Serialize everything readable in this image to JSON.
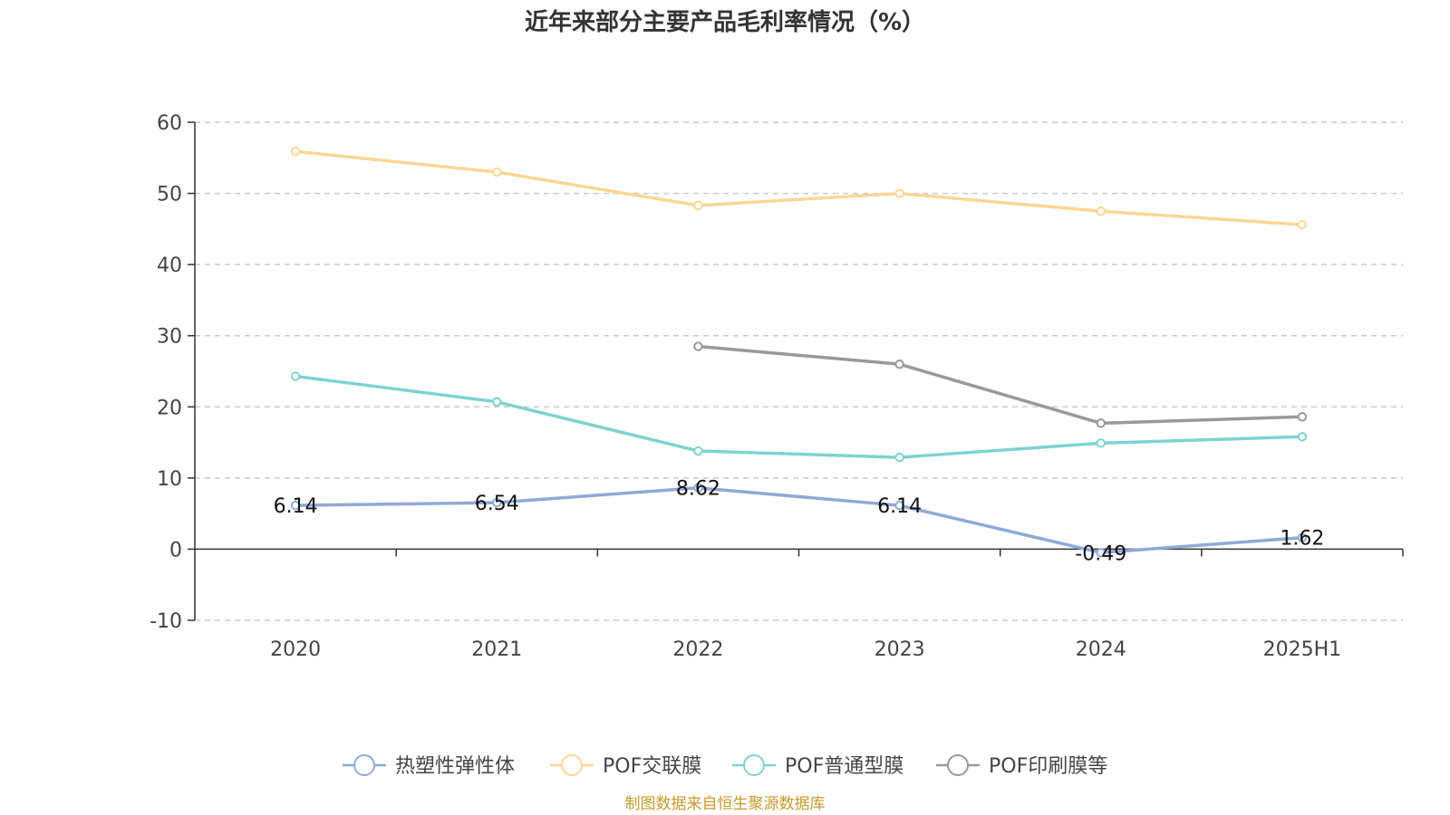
{
  "chart_data": {
    "type": "line",
    "title": "近年来部分主要产品毛利率情况（%）",
    "categories": [
      "2020",
      "2021",
      "2022",
      "2023",
      "2024",
      "2025H1"
    ],
    "ylim": [
      -10,
      60
    ],
    "yticks": [
      60,
      50,
      40,
      30,
      20,
      10,
      0,
      -10
    ],
    "grid": true,
    "legend_position": "bottom",
    "series": [
      {
        "name": "热塑性弹性体",
        "color": "#8eaad8",
        "values": [
          6.14,
          6.54,
          8.62,
          6.14,
          -0.49,
          1.62
        ],
        "labels": [
          "6.14",
          "6.54",
          "8.62",
          "6.14",
          "-0.49",
          "1.62"
        ]
      },
      {
        "name": "POF交联膜",
        "color": "#fbd796",
        "values": [
          55.9,
          53.0,
          48.3,
          50.0,
          47.5,
          45.6
        ]
      },
      {
        "name": "POF普通型膜",
        "color": "#7fd2d2",
        "values": [
          24.3,
          20.7,
          13.8,
          12.9,
          14.9,
          15.8
        ]
      },
      {
        "name": "POF印刷膜等",
        "color": "#999999",
        "values": [
          null,
          null,
          28.5,
          26.0,
          17.7,
          18.6
        ]
      }
    ]
  },
  "source": {
    "text": "制图数据来自恒生聚源数据库",
    "color": "#c79a2c"
  }
}
